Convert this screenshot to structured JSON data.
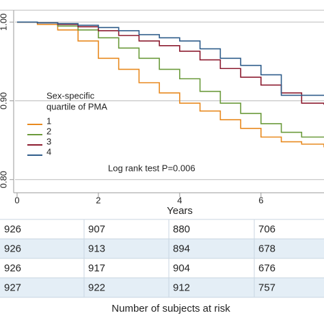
{
  "chart_data": {
    "type": "step",
    "xlabel": "Years",
    "legend_title": [
      "Sex-specific",
      "quartile of PMA"
    ],
    "annotation": "Log rank test P=0.006",
    "x": [
      0,
      0.5,
      1,
      1.5,
      2,
      2.5,
      3,
      3.5,
      4,
      4.5,
      5,
      5.5,
      6,
      6.5,
      7,
      7.55
    ],
    "series": [
      {
        "name": "1",
        "color": "#e8891e",
        "values": [
          1,
          0.997,
          0.99,
          0.976,
          0.954,
          0.94,
          0.923,
          0.91,
          0.897,
          0.887,
          0.876,
          0.865,
          0.854,
          0.848,
          0.845,
          0.841
        ]
      },
      {
        "name": "2",
        "color": "#6a9a3a",
        "values": [
          1,
          0.999,
          0.995,
          0.99,
          0.98,
          0.967,
          0.954,
          0.94,
          0.928,
          0.912,
          0.897,
          0.884,
          0.871,
          0.86,
          0.854,
          0.854
        ]
      },
      {
        "name": "3",
        "color": "#8b1a2e",
        "values": [
          1,
          0.999,
          0.997,
          0.994,
          0.989,
          0.983,
          0.976,
          0.97,
          0.963,
          0.952,
          0.941,
          0.93,
          0.92,
          0.91,
          0.897,
          0.895
        ]
      },
      {
        "name": "4",
        "color": "#2e5c8a",
        "values": [
          1,
          0.999,
          0.998,
          0.996,
          0.993,
          0.989,
          0.984,
          0.98,
          0.976,
          0.966,
          0.954,
          0.945,
          0.933,
          0.907,
          0.907,
          0.907
        ]
      }
    ],
    "xlim": [
      -0.05,
      7.55
    ],
    "xticks": [
      0,
      2,
      4,
      6
    ],
    "ylim": [
      0.785,
      1.015
    ],
    "yticks": [
      {
        "value": 1,
        "label": "1.00"
      },
      {
        "value": 0.9,
        "label": "0.90"
      },
      {
        "value": 0.8,
        "label": "0.80"
      }
    ],
    "grid": true
  },
  "risk_table": {
    "rows": [
      [
        "926",
        "907",
        "880",
        "706"
      ],
      [
        "926",
        "913",
        "894",
        "678"
      ],
      [
        "926",
        "917",
        "904",
        "676"
      ],
      [
        "927",
        "922",
        "912",
        "757"
      ]
    ],
    "caption": "Number of subjects at risk"
  }
}
